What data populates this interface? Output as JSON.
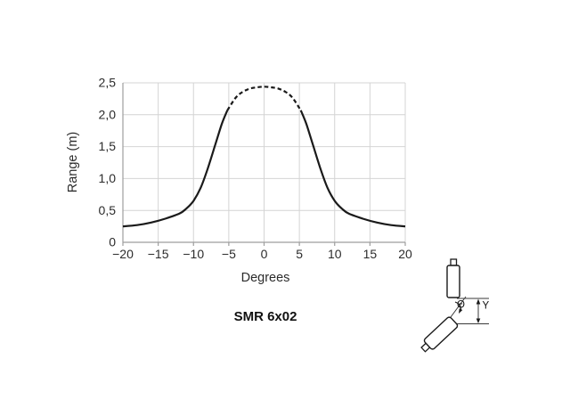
{
  "chart_data": {
    "type": "line",
    "title": "",
    "xlabel": "Degrees",
    "ylabel": "Range (m)",
    "caption": "SMR 6x02",
    "xlim": [
      -20,
      20
    ],
    "ylim": [
      0,
      2.5
    ],
    "grid": true,
    "legend": "none",
    "x_ticks": {
      "values": [
        -20,
        -15,
        -10,
        -5,
        0,
        5,
        10,
        15,
        20
      ],
      "labels": [
        "−20",
        "−15",
        "−10",
        "−5",
        "0",
        "5",
        "10",
        "15",
        "20"
      ]
    },
    "y_ticks": {
      "values": [
        0,
        0.5,
        1.0,
        1.5,
        2.0,
        2.5
      ],
      "labels": [
        "0",
        "0,5",
        "1,0",
        "1,5",
        "2,0",
        "2,5"
      ]
    },
    "series": [
      {
        "name": "range-left-solid",
        "style": "solid",
        "points": [
          [
            -20,
            0.25
          ],
          [
            -18,
            0.27
          ],
          [
            -16,
            0.31
          ],
          [
            -14,
            0.37
          ],
          [
            -12,
            0.45
          ],
          [
            -11,
            0.53
          ],
          [
            -10,
            0.65
          ],
          [
            -9,
            0.85
          ],
          [
            -8,
            1.15
          ],
          [
            -7,
            1.5
          ],
          [
            -6,
            1.85
          ],
          [
            -5.2,
            2.07
          ]
        ]
      },
      {
        "name": "range-center-dashed",
        "style": "dashed",
        "points": [
          [
            -5.2,
            2.07
          ],
          [
            -4,
            2.27
          ],
          [
            -3,
            2.36
          ],
          [
            -2,
            2.41
          ],
          [
            -1,
            2.43
          ],
          [
            0,
            2.44
          ],
          [
            1,
            2.43
          ],
          [
            2,
            2.41
          ],
          [
            3,
            2.36
          ],
          [
            4,
            2.27
          ],
          [
            5.2,
            2.07
          ]
        ]
      },
      {
        "name": "range-right-solid",
        "style": "solid",
        "points": [
          [
            5.2,
            2.07
          ],
          [
            6,
            1.85
          ],
          [
            7,
            1.5
          ],
          [
            8,
            1.15
          ],
          [
            9,
            0.85
          ],
          [
            10,
            0.65
          ],
          [
            11,
            0.53
          ],
          [
            12,
            0.45
          ],
          [
            14,
            0.37
          ],
          [
            16,
            0.31
          ],
          [
            18,
            0.27
          ],
          [
            20,
            0.25
          ]
        ]
      }
    ],
    "curve_color": "#1a1a1a",
    "grid_color": "#d4d4d4",
    "axis_color": "#9e9e9e",
    "label_color": "#2b2b2b"
  },
  "diagram": {
    "angle_label": "Θ",
    "offset_label": "Y"
  }
}
